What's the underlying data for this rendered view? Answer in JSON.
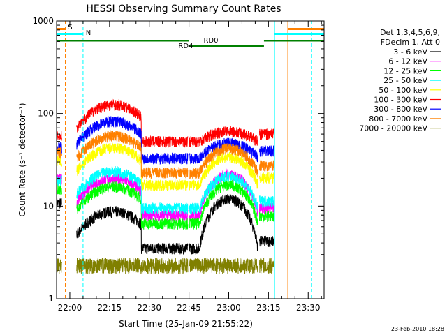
{
  "chart_data": {
    "type": "line",
    "title": "HESSI Observing Summary Count Rates",
    "xlabel": "Start Time (25-Jan-09 21:55:22)",
    "ylabel": "Count Rate (s⁻¹ detector⁻¹)",
    "yscale": "log",
    "ylim": [
      1,
      1000
    ],
    "xlim_minutes_from_2155": [
      0,
      101
    ],
    "x_ticks": [
      {
        "label": "22:00",
        "min": 5
      },
      {
        "label": "22:15",
        "min": 20
      },
      {
        "label": "22:30",
        "min": 35
      },
      {
        "label": "22:45",
        "min": 50
      },
      {
        "label": "23:00",
        "min": 65
      },
      {
        "label": "23:15",
        "min": 80
      },
      {
        "label": "23:30",
        "min": 95
      }
    ],
    "y_ticks": [
      {
        "label": "1",
        "value": 1
      },
      {
        "label": "10",
        "value": 10
      },
      {
        "label": "100",
        "value": 100
      },
      {
        "label": "1000",
        "value": 1000
      }
    ],
    "legend": {
      "header": [
        "Det 1,3,4,5,6,9,",
        "FDecim 1, Att 0"
      ],
      "placement": "right"
    },
    "series": [
      {
        "name": "3 - 6 keV",
        "color": "#000000",
        "day_level": 3.5,
        "night_level": 12
      },
      {
        "name": "6 - 12 keV",
        "color": "#ff00ff",
        "day_level": 8,
        "night_level": 22
      },
      {
        "name": "12 - 25 keV",
        "color": "#00ff00",
        "day_level": 6.5,
        "night_level": 17
      },
      {
        "name": "25 - 50 keV",
        "color": "#00ffff",
        "day_level": 9.5,
        "night_level": 21
      },
      {
        "name": "50 - 100 keV",
        "color": "#ffff00",
        "day_level": 17,
        "night_level": 34
      },
      {
        "name": "100 - 300 keV",
        "color": "#ff0000",
        "day_level": 50,
        "night_level": 64
      },
      {
        "name": "300 - 800 keV",
        "color": "#0000ff",
        "day_level": 33,
        "night_level": 48
      },
      {
        "name": "800 - 7000 keV",
        "color": "#ff8000",
        "day_level": 23,
        "night_level": 42
      },
      {
        "name": "7000 - 20000 keV",
        "color": "#808000",
        "day_level": 2.3,
        "night_level": 2.2
      }
    ],
    "annotations": [
      {
        "text": "S",
        "color": "#ff8000"
      },
      {
        "text": "N",
        "color": "#00ffff"
      },
      {
        "text": "RD0",
        "color": "#008000"
      },
      {
        "text": "RD4",
        "color": "#008000"
      }
    ],
    "footer": "23-Feb-2010 18:28"
  }
}
